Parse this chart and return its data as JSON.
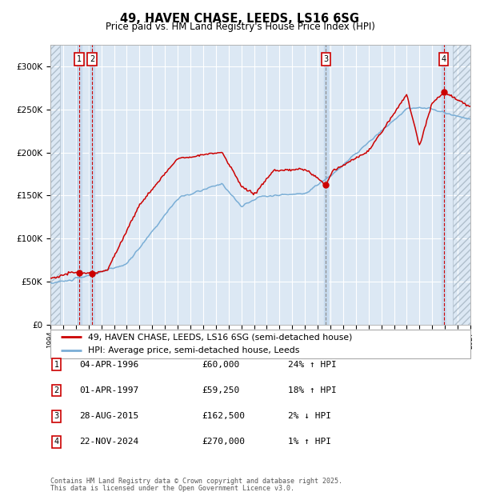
{
  "title": "49, HAVEN CHASE, LEEDS, LS16 6SG",
  "subtitle": "Price paid vs. HM Land Registry's House Price Index (HPI)",
  "ylim": [
    0,
    325000
  ],
  "yticks": [
    0,
    50000,
    100000,
    150000,
    200000,
    250000,
    300000
  ],
  "ytick_labels": [
    "£0",
    "£50K",
    "£100K",
    "£150K",
    "£200K",
    "£250K",
    "£300K"
  ],
  "x_start_year": 1994,
  "x_end_year": 2027,
  "hpi_color": "#7aaed6",
  "price_color": "#cc0000",
  "bg_color": "#ffffff",
  "chart_bg": "#dce8f4",
  "grid_color": "#ffffff",
  "sale_band_color": "#c5d9ee",
  "purchases": [
    {
      "label": "1",
      "date_num": 1996.27,
      "price": 60000,
      "pct": "24%",
      "dir": "↑",
      "date_str": "04-APR-1996",
      "vline": "red"
    },
    {
      "label": "2",
      "date_num": 1997.27,
      "price": 59250,
      "pct": "18%",
      "dir": "↑",
      "date_str": "01-APR-1997",
      "vline": "red"
    },
    {
      "label": "3",
      "date_num": 2015.65,
      "price": 162500,
      "pct": "2%",
      "dir": "↓",
      "date_str": "28-AUG-2015",
      "vline": "gray"
    },
    {
      "label": "4",
      "date_num": 2024.9,
      "price": 270000,
      "pct": "1%",
      "dir": "↑",
      "date_str": "22-NOV-2024",
      "vline": "red"
    }
  ],
  "legend_entries": [
    "49, HAVEN CHASE, LEEDS, LS16 6SG (semi-detached house)",
    "HPI: Average price, semi-detached house, Leeds"
  ],
  "footnote1": "Contains HM Land Registry data © Crown copyright and database right 2025.",
  "footnote2": "This data is licensed under the Open Government Licence v3.0."
}
